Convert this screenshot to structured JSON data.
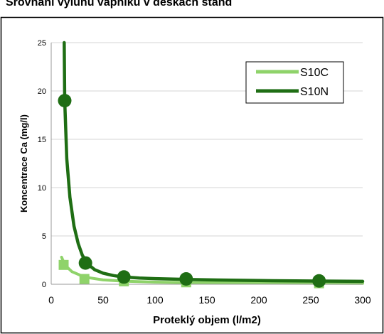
{
  "chart_data": {
    "type": "line",
    "title": "Srovnání vyluhu vápníku v deskách stand",
    "xlabel": "Proteklý objem (l/m2)",
    "ylabel": "Koncentrace Ca (mg/l)",
    "xlim": [
      0,
      300
    ],
    "ylim": [
      0,
      25
    ],
    "x_ticks": [
      0,
      50,
      100,
      150,
      200,
      250,
      300
    ],
    "y_ticks": [
      0,
      5,
      10,
      15,
      20,
      25
    ],
    "grid": "horizontal",
    "legend_position": "top-right",
    "series": [
      {
        "name": "S10C",
        "color": "#8fd36a",
        "marker": "square",
        "points": [
          [
            12,
            2.0
          ],
          [
            32,
            0.55
          ],
          [
            70,
            0.3
          ],
          [
            130,
            0.2
          ],
          [
            258,
            0.1
          ]
        ],
        "fit_curve": [
          [
            10,
            2.8
          ],
          [
            12,
            2.3
          ],
          [
            15,
            1.8
          ],
          [
            20,
            1.3
          ],
          [
            32,
            0.75
          ],
          [
            50,
            0.45
          ],
          [
            70,
            0.32
          ],
          [
            100,
            0.22
          ],
          [
            130,
            0.17
          ],
          [
            200,
            0.12
          ],
          [
            258,
            0.1
          ],
          [
            300,
            0.09
          ]
        ]
      },
      {
        "name": "S10N",
        "color": "#1f6e14",
        "marker": "circle",
        "points": [
          [
            13,
            19.0
          ],
          [
            33,
            2.2
          ],
          [
            70,
            0.75
          ],
          [
            130,
            0.55
          ],
          [
            258,
            0.35
          ]
        ],
        "fit_curve": [
          [
            12.5,
            25.0
          ],
          [
            13,
            19.0
          ],
          [
            15,
            13.0
          ],
          [
            18,
            9.0
          ],
          [
            22,
            6.0
          ],
          [
            26,
            4.2
          ],
          [
            30,
            3.0
          ],
          [
            35,
            2.1
          ],
          [
            42,
            1.5
          ],
          [
            50,
            1.15
          ],
          [
            60,
            0.9
          ],
          [
            70,
            0.75
          ],
          [
            85,
            0.65
          ],
          [
            100,
            0.58
          ],
          [
            130,
            0.5
          ],
          [
            160,
            0.44
          ],
          [
            200,
            0.38
          ],
          [
            258,
            0.33
          ],
          [
            300,
            0.3
          ]
        ]
      }
    ]
  }
}
